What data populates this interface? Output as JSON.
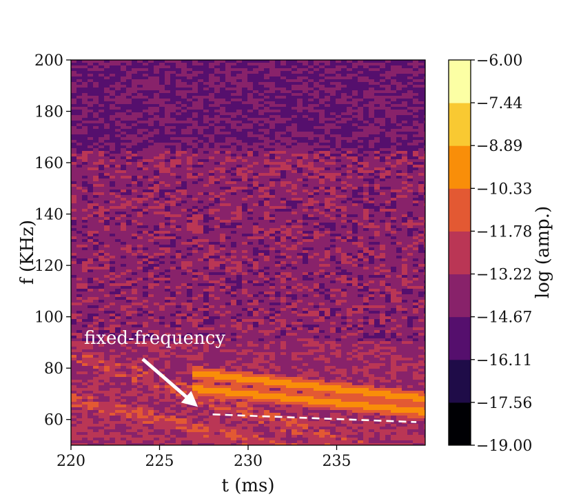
{
  "chart_data": {
    "type": "heatmap",
    "title": "",
    "xlabel": "t (ms)",
    "ylabel": "f (KHz)",
    "xlim": [
      220,
      240
    ],
    "ylim": [
      50,
      200
    ],
    "x_ticks": [
      "220",
      "225",
      "230",
      "235"
    ],
    "y_ticks": [
      "60",
      "80",
      "100",
      "120",
      "140",
      "160",
      "180",
      "200"
    ],
    "colorbar": {
      "label": "log (amp.)",
      "min": -19.0,
      "max": -6.0,
      "ticks": [
        "−6.00",
        "−7.44",
        "−8.89",
        "−10.33",
        "−11.78",
        "−13.22",
        "−14.67",
        "−16.11",
        "−17.56",
        "−19.00"
      ],
      "levels": [
        "#000004",
        "#1f0c48",
        "#550f6d",
        "#88226a",
        "#ba3655",
        "#e35933",
        "#f98e09",
        "#f9c932",
        "#fcffa4"
      ]
    },
    "features": [
      {
        "name": "lower tone",
        "t": [
          227.0,
          240.0
        ],
        "f": [
          72,
          63
        ]
      },
      {
        "name": "upper tone",
        "t": [
          227.0,
          240.0
        ],
        "f": [
          78,
          68
        ]
      },
      {
        "name": "dashed reference",
        "t": [
          228.0,
          239.5
        ],
        "f": [
          62,
          59
        ]
      }
    ],
    "annotation": {
      "text": "fixed-frequency",
      "arrow_to": {
        "t": 227.2,
        "f": 64.5
      }
    }
  }
}
